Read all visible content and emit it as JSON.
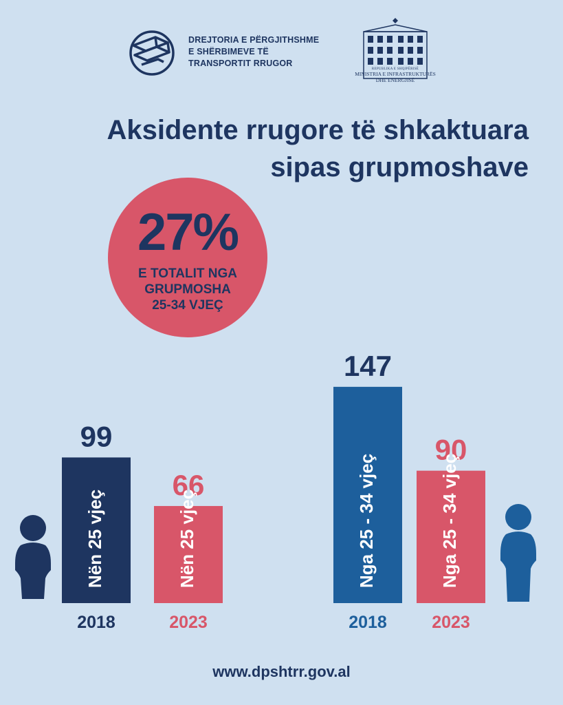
{
  "header": {
    "org_lines": [
      "DREJTORIA E PËRGJITHSHME",
      "E SHËRBIMEVE TË",
      "TRANSPORTIT RRUGOR"
    ],
    "ministry_small": "REPUBLIKA E SHQIPËRISË",
    "ministry_lines": [
      "MINISTRIA E INFRASTRUKTURËS",
      "DHE ENERGJISË"
    ]
  },
  "title_lines": [
    "Aksidente rrugore të shkaktuara",
    "sipas grupmoshave"
  ],
  "badge": {
    "value": "27%",
    "caption_lines": [
      "E TOTALIT NGA",
      "GRUPMOSHA",
      "25-34 VJEÇ"
    ]
  },
  "chart_data": {
    "type": "bar",
    "title": "Aksidente rrugore të shkaktuara sipas grupmoshave",
    "groups": [
      {
        "bars": [
          {
            "year": "2018",
            "label": "Nën 25 vjeç",
            "value": 99,
            "color": "#1e3560"
          },
          {
            "year": "2023",
            "label": "Nën 25 vjeç",
            "value": 66,
            "color": "#d85669"
          }
        ]
      },
      {
        "bars": [
          {
            "year": "2018",
            "label": "Nga 25 - 34 vjeç",
            "value": 147,
            "color": "#1d5f9c"
          },
          {
            "year": "2023",
            "label": "Nga 25 - 34 vjeç",
            "value": 90,
            "color": "#d85669"
          }
        ]
      }
    ],
    "grid": false
  },
  "colors": {
    "background": "#cfe0f0",
    "navy": "#1e3560",
    "blue": "#1d5f9c",
    "coral": "#d85669"
  },
  "icons": {
    "left_person": "person-icon",
    "right_person": "person-icon",
    "logo": "dpshtrr-logo",
    "ministry": "ministry-building-emblem"
  },
  "footer": {
    "url": "www.dpshtrr.gov.al"
  }
}
